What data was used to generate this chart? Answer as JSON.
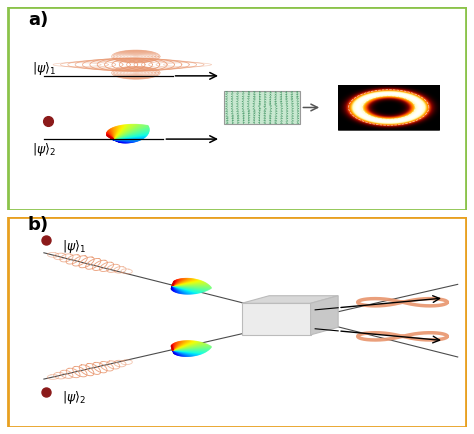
{
  "panel_a_border": "#8BC34A",
  "panel_b_border": "#E8A020",
  "background": "#FFFFFF",
  "salmon": "#E8956D",
  "dark_red": "#8B1A1A",
  "grid_bg": "#C8E8D0",
  "grid_arrow": "#4A9A6A",
  "fig_width": 4.74,
  "fig_height": 4.34
}
